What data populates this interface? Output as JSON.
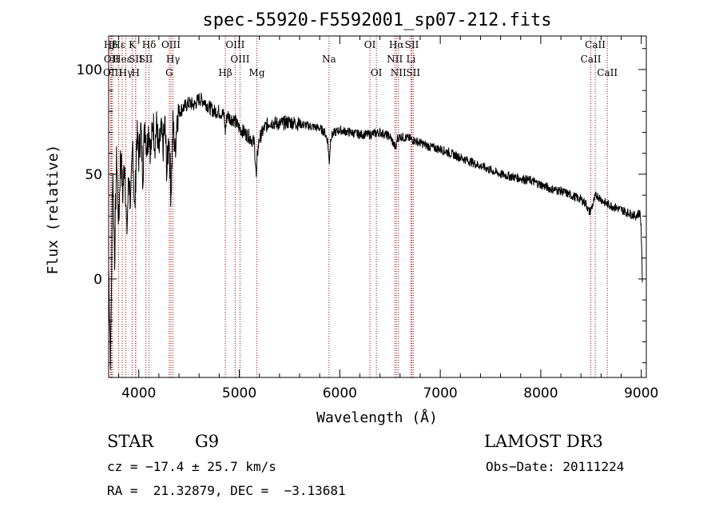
{
  "chart_data": {
    "type": "line",
    "title": "spec-55920-F5592001_sp07-212.fits",
    "xlabel": "Wavelength (Å)",
    "ylabel": "Flux (relative)",
    "xlim": [
      3700,
      9050
    ],
    "ylim": [
      -47,
      116
    ],
    "xticks": [
      4000,
      5000,
      6000,
      7000,
      8000,
      9000
    ],
    "yticks": [
      0,
      50,
      100
    ],
    "spectrum": {
      "x": [
        3700,
        3720,
        3740,
        3760,
        3780,
        3800,
        3820,
        3840,
        3860,
        3880,
        3900,
        3920,
        3940,
        3960,
        3980,
        4000,
        4020,
        4040,
        4060,
        4080,
        4100,
        4120,
        4140,
        4160,
        4180,
        4200,
        4220,
        4240,
        4260,
        4280,
        4300,
        4320,
        4340,
        4360,
        4380,
        4400,
        4450,
        4500,
        4550,
        4600,
        4650,
        4700,
        4750,
        4800,
        4850,
        4860,
        4880,
        4900,
        4950,
        5000,
        5050,
        5100,
        5150,
        5170,
        5180,
        5200,
        5250,
        5300,
        5400,
        5500,
        5600,
        5700,
        5800,
        5850,
        5880,
        5895,
        5910,
        5950,
        6000,
        6100,
        6200,
        6300,
        6400,
        6500,
        6560,
        6570,
        6600,
        6700,
        6800,
        6900,
        7000,
        7100,
        7200,
        7300,
        7400,
        7500,
        7600,
        7700,
        7800,
        7900,
        8000,
        8100,
        8200,
        8300,
        8400,
        8450,
        8480,
        8500,
        8540,
        8560,
        8600,
        8650,
        8700,
        8750,
        8800,
        8850,
        8900,
        8940,
        8970,
        8990,
        9000,
        9010
      ],
      "y": [
        5,
        -40,
        55,
        10,
        60,
        25,
        62,
        40,
        58,
        20,
        50,
        35,
        65,
        30,
        70,
        58,
        72,
        50,
        75,
        62,
        73,
        60,
        76,
        65,
        74,
        58,
        72,
        62,
        74,
        50,
        70,
        40,
        75,
        60,
        78,
        80,
        82,
        84,
        83,
        86,
        85,
        82,
        80,
        80,
        78,
        70,
        79,
        77,
        76,
        72,
        70,
        68,
        65,
        48,
        60,
        67,
        72,
        75,
        74,
        75,
        74,
        73,
        72,
        70,
        66,
        55,
        68,
        70,
        71,
        70,
        69,
        69,
        70,
        68,
        62,
        67,
        68,
        67,
        65,
        63,
        62,
        60,
        58,
        56,
        54,
        52,
        50,
        49,
        48,
        47,
        45,
        43,
        42,
        40,
        38,
        36,
        32,
        33,
        39,
        40,
        38,
        36,
        35,
        34,
        33,
        32,
        31,
        30,
        31,
        32,
        22,
        0
      ]
    },
    "lines": [
      {
        "label": "Hβ",
        "wl": 3720,
        "row": 0
      },
      {
        "label": "OII",
        "wl": 3728,
        "row": 1
      },
      {
        "label": "OIII",
        "wl": 3740,
        "row": 2
      },
      {
        "label": "Hε",
        "wl": 3800,
        "row": 0
      },
      {
        "label": "Heε",
        "wl": 3835,
        "row": 1
      },
      {
        "label": "Hγ",
        "wl": 3870,
        "row": 2
      },
      {
        "label": "K",
        "wl": 3934,
        "row": 0
      },
      {
        "label": "SII",
        "wl": 3970,
        "row": 1
      },
      {
        "label": "H",
        "wl": 3968,
        "row": 2
      },
      {
        "label": "Hδ",
        "wl": 4102,
        "row": 0
      },
      {
        "label": "SII",
        "wl": 4070,
        "row": 1
      },
      {
        "label": "OIII",
        "wl": 4320,
        "row": 0
      },
      {
        "label": "Hγ",
        "wl": 4341,
        "row": 1
      },
      {
        "label": "G",
        "wl": 4304,
        "row": 2
      },
      {
        "label": "OIII",
        "wl": 4959,
        "row": 0
      },
      {
        "label": "OIII",
        "wl": 5007,
        "row": 1
      },
      {
        "label": "Hβ",
        "wl": 4861,
        "row": 2
      },
      {
        "label": "Mg",
        "wl": 5175,
        "row": 2
      },
      {
        "label": "Na",
        "wl": 5893,
        "row": 1
      },
      {
        "label": "OI",
        "wl": 6300,
        "row": 0
      },
      {
        "label": "OI",
        "wl": 6364,
        "row": 2
      },
      {
        "label": "Hα",
        "wl": 6563,
        "row": 0
      },
      {
        "label": "NII",
        "wl": 6548,
        "row": 1
      },
      {
        "label": "NII",
        "wl": 6584,
        "row": 2
      },
      {
        "label": "SII",
        "wl": 6717,
        "row": 0
      },
      {
        "label": "Li",
        "wl": 6708,
        "row": 1
      },
      {
        "label": "SII",
        "wl": 6731,
        "row": 2
      },
      {
        "label": "CaII",
        "wl": 8542,
        "row": 0
      },
      {
        "label": "CaII",
        "wl": 8498,
        "row": 1
      },
      {
        "label": "CaII",
        "wl": 8662,
        "row": 2
      }
    ]
  },
  "info": {
    "class": "STAR",
    "subclass": "G9",
    "survey": "LAMOST DR3",
    "cz": "cz = −17.4 ± 25.7 km/s",
    "obs_date": "Obs−Date: 20111224",
    "coords": "RA =  21.32879, DEC =  −3.13681"
  }
}
